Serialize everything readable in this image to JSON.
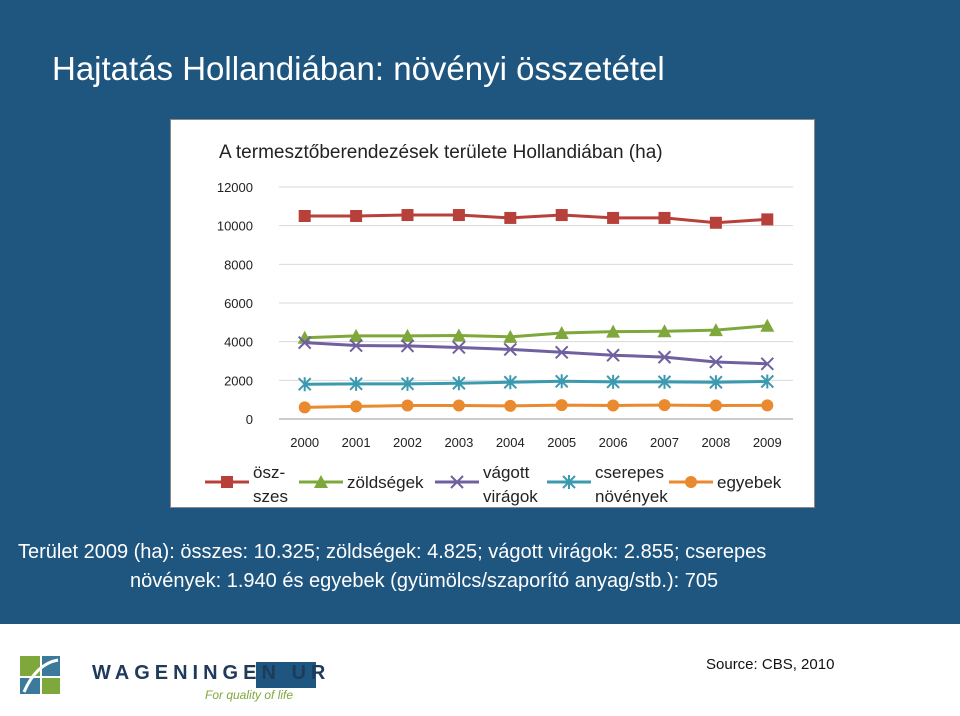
{
  "slide": {
    "title": "Hajtatás Hollandiában: növényi összetétel",
    "caption_line1": "Terület 2009 (ha): összes: 10.325; zöldségek: 4.825; vágott virágok: 2.855;    cserepes",
    "caption_line2": "növények: 1.940 és egyebek (gyümölcs/szaporító anyag/stb.): 705",
    "source": "Source: CBS, 2010",
    "logo_name": "WAGENINGEN UR",
    "logo_tagline": "For quality of life",
    "colors": {
      "panel": "#1f5680",
      "text_on_panel": "#ffffff"
    }
  },
  "chart_data": {
    "type": "line",
    "title": "A termesztőberendezések területe Hollandiában (ha)",
    "xlabel": "",
    "ylabel": "",
    "x": [
      "2000",
      "2001",
      "2002",
      "2003",
      "2004",
      "2005",
      "2006",
      "2007",
      "2008",
      "2009"
    ],
    "yticks": [
      "0",
      "2000",
      "4000",
      "6000",
      "8000",
      "10000",
      "12000"
    ],
    "ylim": [
      0,
      12000
    ],
    "grid": true,
    "legend_position": "bottom",
    "series": [
      {
        "name_lines": [
          "ösz-",
          "szes"
        ],
        "marker": "square",
        "color": "#b8403b",
        "values": [
          10500,
          10500,
          10550,
          10550,
          10400,
          10550,
          10400,
          10400,
          10150,
          10325
        ]
      },
      {
        "name_lines": [
          "zöldségek"
        ],
        "marker": "triangle",
        "color": "#7fa83c",
        "values": [
          4200,
          4300,
          4300,
          4320,
          4250,
          4450,
          4520,
          4540,
          4600,
          4825
        ]
      },
      {
        "name_lines": [
          "vágott",
          "virágok"
        ],
        "marker": "x",
        "color": "#7060a0",
        "values": [
          3950,
          3800,
          3780,
          3700,
          3600,
          3450,
          3300,
          3200,
          2950,
          2855
        ]
      },
      {
        "name_lines": [
          "cserepes",
          "növények"
        ],
        "marker": "star",
        "color": "#3c9ab0",
        "values": [
          1800,
          1820,
          1820,
          1850,
          1900,
          1950,
          1920,
          1920,
          1900,
          1940
        ]
      },
      {
        "name_lines": [
          "egyebek"
        ],
        "marker": "circle",
        "color": "#e98a2e",
        "values": [
          600,
          650,
          700,
          700,
          680,
          720,
          700,
          720,
          700,
          705
        ]
      }
    ]
  }
}
